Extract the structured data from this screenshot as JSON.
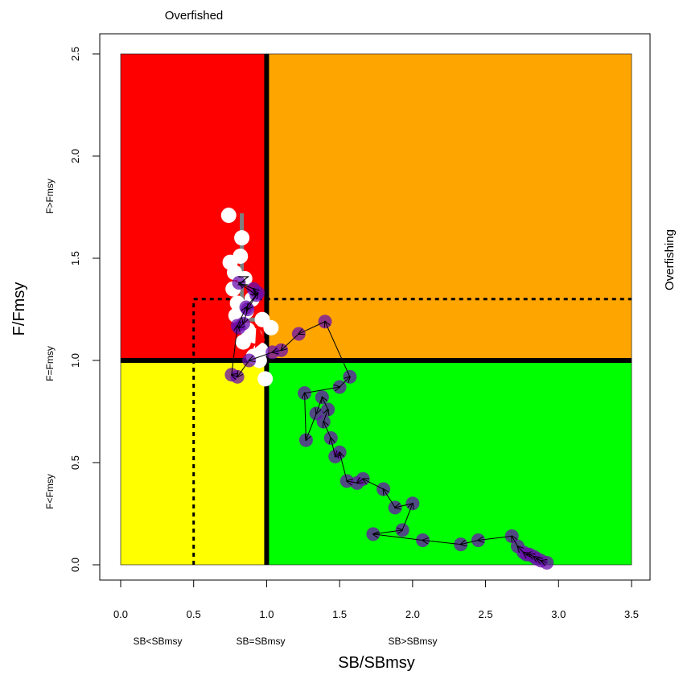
{
  "chart_data": {
    "type": "scatter",
    "title": "",
    "xlabel": "SB/SBmsy",
    "ylabel": "F/Fmsy",
    "xlim": [
      0,
      3.5
    ],
    "ylim": [
      0,
      2.5
    ],
    "x_ticks": [
      "0.0",
      "0.5",
      "1.0",
      "1.5",
      "2.0",
      "2.5",
      "3.0",
      "3.5"
    ],
    "y_ticks": [
      "0.0",
      "0.5",
      "1.0",
      "1.5",
      "2.0",
      "2.5"
    ],
    "grid": false,
    "quadrants": {
      "overfished_overfishing": "#ff0000",
      "healthy_overfishing": "#ffa500",
      "overfished_not_overfishing": "#ffff00",
      "healthy_not_overfishing": "#00ff00"
    },
    "reference_lines": {
      "sb_ref": 1.0,
      "f_ref": 1.0,
      "limit_sb": 0.5,
      "limit_f": 1.3
    },
    "annotations": {
      "top": "Overfished",
      "right": "Overfishing",
      "f_high": "F>Fmsy",
      "f_mid": "F=Fmsy",
      "f_low": "F<Fmsy",
      "sb_low": "SB<SBmsy",
      "sb_mid": "SB=SBmsy",
      "sb_high": "SB>SBmsy"
    },
    "series": [
      {
        "color": "#6a0dad",
        "points": [
          [
            2.92,
            0.01
          ],
          [
            2.88,
            0.02
          ],
          [
            2.85,
            0.03
          ],
          [
            2.83,
            0.04
          ],
          [
            2.8,
            0.05
          ],
          [
            2.78,
            0.05
          ],
          [
            2.76,
            0.06
          ],
          [
            2.72,
            0.09
          ],
          [
            2.68,
            0.14
          ],
          [
            2.45,
            0.12
          ],
          [
            2.33,
            0.1
          ],
          [
            2.07,
            0.12
          ],
          [
            1.73,
            0.15
          ],
          [
            1.93,
            0.17
          ],
          [
            2.0,
            0.3
          ],
          [
            1.88,
            0.28
          ],
          [
            1.8,
            0.37
          ],
          [
            1.66,
            0.42
          ],
          [
            1.62,
            0.4
          ],
          [
            1.55,
            0.41
          ],
          [
            1.5,
            0.55
          ],
          [
            1.47,
            0.53
          ],
          [
            1.44,
            0.62
          ],
          [
            1.39,
            0.7
          ],
          [
            1.42,
            0.76
          ],
          [
            1.38,
            0.82
          ],
          [
            1.34,
            0.74
          ],
          [
            1.27,
            0.61
          ],
          [
            1.26,
            0.84
          ],
          [
            1.5,
            0.87
          ],
          [
            1.57,
            0.92
          ],
          [
            1.4,
            1.19
          ],
          [
            1.22,
            1.13
          ],
          [
            1.1,
            1.05
          ],
          [
            1.04,
            1.04
          ],
          [
            0.88,
            1.0
          ],
          [
            0.8,
            0.92
          ],
          [
            0.76,
            0.93
          ],
          [
            0.8,
            1.17
          ],
          [
            0.86,
            1.26
          ],
          [
            0.94,
            1.33
          ],
          [
            0.91,
            1.35
          ],
          [
            0.81,
            1.38
          ],
          [
            0.93,
            1.32
          ],
          [
            0.87,
            1.25
          ],
          [
            0.84,
            1.18
          ],
          [
            0.81,
            1.16
          ]
        ]
      },
      {
        "color": "#ffffff",
        "points": [
          [
            0.74,
            1.71
          ],
          [
            0.83,
            1.6
          ],
          [
            0.82,
            1.51
          ],
          [
            0.75,
            1.48
          ],
          [
            0.78,
            1.43
          ],
          [
            0.85,
            1.4
          ],
          [
            0.77,
            1.35
          ],
          [
            0.9,
            1.3
          ],
          [
            0.8,
            1.28
          ],
          [
            0.86,
            1.24
          ],
          [
            0.79,
            1.22
          ],
          [
            0.97,
            1.2
          ],
          [
            1.03,
            1.16
          ],
          [
            0.87,
            1.15
          ],
          [
            0.92,
            1.12
          ],
          [
            0.84,
            1.09
          ],
          [
            0.96,
            1.05
          ],
          [
            0.91,
            1.02
          ],
          [
            0.95,
            1.0
          ],
          [
            0.99,
            0.91
          ]
        ]
      }
    ],
    "uncertainty": {
      "color": "#808080",
      "vertical": [
        0.83,
        1.72,
        1.18
      ],
      "horizontal": [
        0.83,
        0.98,
        1.2
      ]
    },
    "start_marker": [
      0.84,
      1.39
    ],
    "end_triangle": [
      [
        0.93,
        1.18
      ],
      [
        0.99,
        1.1
      ],
      [
        0.92,
        1.06
      ]
    ]
  }
}
